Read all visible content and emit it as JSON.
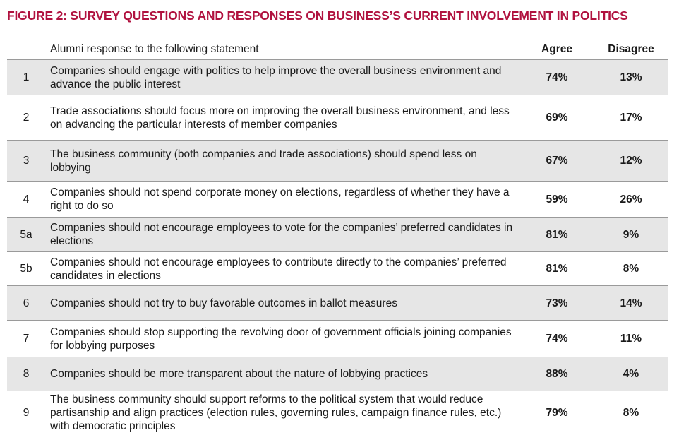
{
  "title": "FIGURE 2: SURVEY QUESTIONS AND RESPONSES ON BUSINESS’S CURRENT INVOLVEMENT IN POLITICS",
  "colors": {
    "title": "#b0123f",
    "shade": "#e6e6e6",
    "rule": "#9a9a9a"
  },
  "header": {
    "statement": "Alumni response to the following statement",
    "agree": "Agree",
    "disagree": "Disagree"
  },
  "rows": [
    {
      "num": "1",
      "statement": "Companies should engage with politics to help improve the overall business environment and advance the public interest",
      "agree": "74%",
      "disagree": "13%",
      "shaded": true
    },
    {
      "num": "2",
      "statement": "Trade associations should focus more on improving the overall business environment, and less on advancing the particular interests of member companies",
      "agree": "69%",
      "disagree": "17%",
      "shaded": false
    },
    {
      "num": "3",
      "statement": "The business community (both companies and trade associations) should spend less on lobbying",
      "agree": "67%",
      "disagree": "12%",
      "shaded": true
    },
    {
      "num": "4",
      "statement": "Companies should not spend corporate money on elections, regardless of whether they have a right to do so",
      "agree": "59%",
      "disagree": "26%",
      "shaded": false
    },
    {
      "num": "5a",
      "statement": "Companies should not encourage employees to vote for the companies’ preferred candidates in elections",
      "agree": "81%",
      "disagree": "9%",
      "shaded": true
    },
    {
      "num": "5b",
      "statement": "Companies should not encourage employees to contribute directly to the companies’ preferred candidates in elections",
      "agree": "81%",
      "disagree": "8%",
      "shaded": false
    },
    {
      "num": "6",
      "statement": "Companies should not try to buy favorable outcomes in ballot measures",
      "agree": "73%",
      "disagree": "14%",
      "shaded": true
    },
    {
      "num": "7",
      "statement": "Companies should stop supporting the revolving door of government officials joining companies for lobbying purposes",
      "agree": "74%",
      "disagree": "11%",
      "shaded": false
    },
    {
      "num": "8",
      "statement": "Companies should be more transparent about the nature of lobbying practices",
      "agree": "88%",
      "disagree": "4%",
      "shaded": true
    },
    {
      "num": "9",
      "statement": "The business community should support reforms to the political system that would reduce partisanship and align practices (election rules, governing rules, campaign finance rules, etc.) with democratic principles",
      "agree": "79%",
      "disagree": "8%",
      "shaded": false
    }
  ]
}
